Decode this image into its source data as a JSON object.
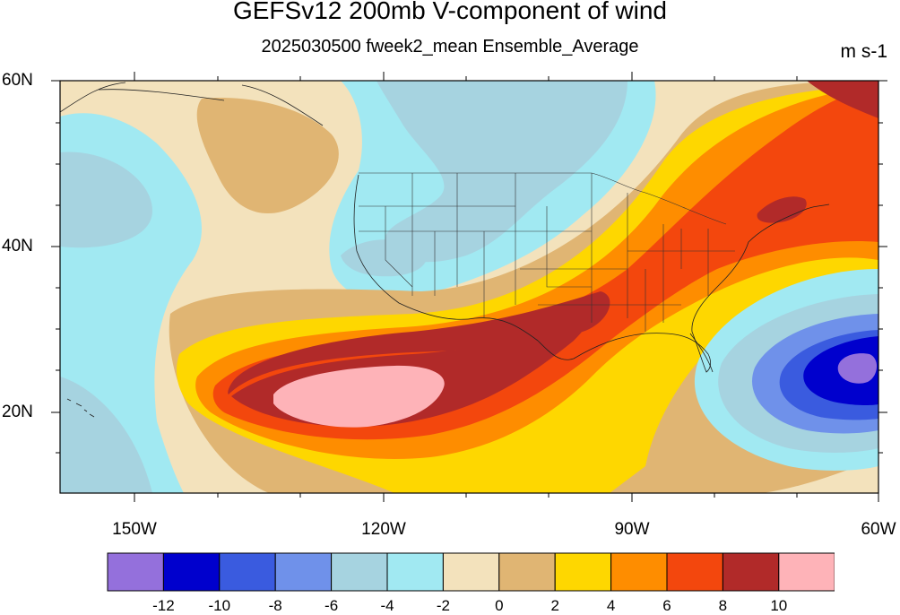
{
  "header": {
    "title": "GEFSv12 200mb V-component of wind",
    "subtitle": "2025030500 fweek2_mean Ensemble_Average",
    "units": "m s-1"
  },
  "map": {
    "lat_labels": [
      "60N",
      "40N",
      "20N"
    ],
    "lon_labels": [
      "150W",
      "120W",
      "90W",
      "60W"
    ],
    "lat_range": [
      10,
      60
    ],
    "lon_range": [
      -160,
      -60
    ],
    "features": [
      "coastlines",
      "us-state-borders"
    ]
  },
  "colorbar": {
    "levels": [
      "-12",
      "-10",
      "-8",
      "-6",
      "-4",
      "-2",
      "0",
      "2",
      "4",
      "6",
      "8",
      "10"
    ],
    "colors": [
      "#9470dc",
      "#0000cd",
      "#3a5bdf",
      "#6f91ea",
      "#a6d3e0",
      "#a1e9f2",
      "#f3e2bc",
      "#e0b573",
      "#fed700",
      "#fe8d00",
      "#f3470d",
      "#b12a29",
      "#feb3b8"
    ]
  }
}
